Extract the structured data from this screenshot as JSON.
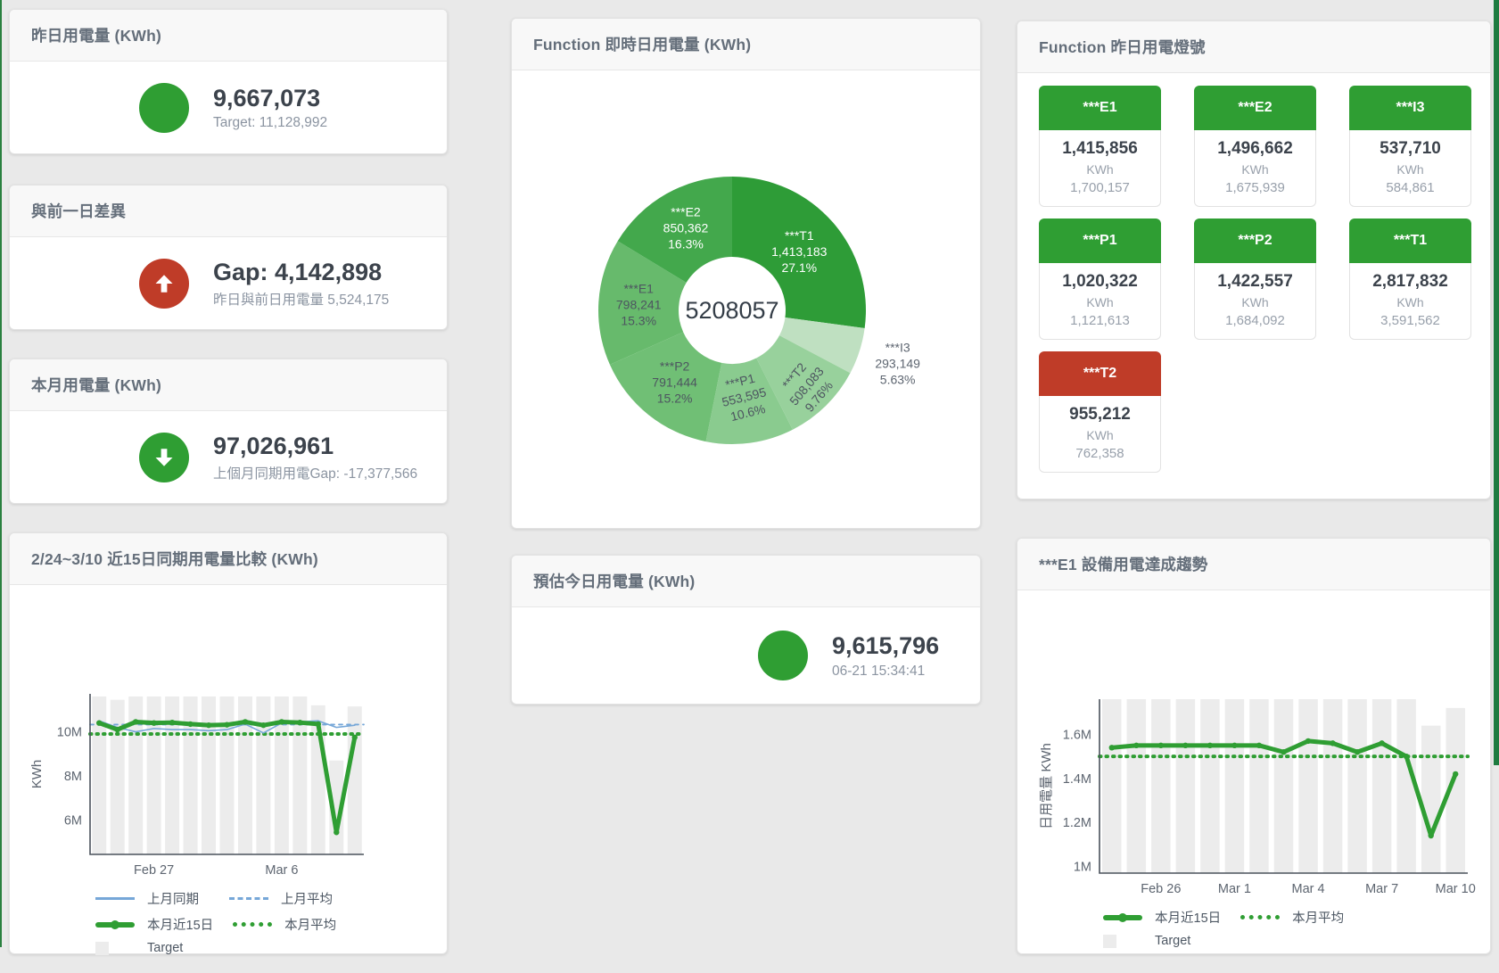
{
  "cards": {
    "yesterday": {
      "title": "昨日用電量 (KWh)",
      "value": "9,667,073",
      "sub": "Target: 11,128,992",
      "icon": "circle",
      "icon_color": "#2f9e33"
    },
    "gap_prev": {
      "title": "與前一日差異",
      "value": "Gap: 4,142,898",
      "sub": "昨日與前日用電量 5,524,175",
      "icon": "arrow-up",
      "icon_color": "#bf3c28"
    },
    "month": {
      "title": "本月用電量 (KWh)",
      "value": "97,026,961",
      "sub": "上個月同期用電Gap: -17,377,566",
      "icon": "arrow-down",
      "icon_color": "#2f9e33"
    },
    "estimate": {
      "title": "預估今日用電量 (KWh)",
      "value": "9,615,796",
      "sub": "06-21 15:34:41",
      "icon": "circle",
      "icon_color": "#2f9e33"
    },
    "donut": {
      "title": "Function 即時日用電量 (KWh)"
    },
    "lights": {
      "title": "Function 昨日用電燈號"
    },
    "compare": {
      "title": "2/24~3/10 近15日同期用電量比較 (KWh)"
    },
    "e1trend": {
      "title": "***E1 設備用電達成趨勢"
    }
  },
  "lights_tiles": [
    {
      "label": "***E1",
      "value": "1,415,856",
      "unit": "KWh",
      "target": "1,700,157",
      "color": "#2f9e33"
    },
    {
      "label": "***E2",
      "value": "1,496,662",
      "unit": "KWh",
      "target": "1,675,939",
      "color": "#2f9e33"
    },
    {
      "label": "***I3",
      "value": "537,710",
      "unit": "KWh",
      "target": "584,861",
      "color": "#2f9e33"
    },
    {
      "label": "***P1",
      "value": "1,020,322",
      "unit": "KWh",
      "target": "1,121,613",
      "color": "#2f9e33"
    },
    {
      "label": "***P2",
      "value": "1,422,557",
      "unit": "KWh",
      "target": "1,684,092",
      "color": "#2f9e33"
    },
    {
      "label": "***T1",
      "value": "2,817,832",
      "unit": "KWh",
      "target": "3,591,562",
      "color": "#2f9e33"
    },
    {
      "label": "***T2",
      "value": "955,212",
      "unit": "KWh",
      "target": "762,358",
      "color": "#bf3c28"
    }
  ],
  "chart_data": [
    {
      "id": "donut",
      "type": "pie",
      "title": "Function 即時日用電量 (KWh)",
      "center_label": "5208057",
      "slices": [
        {
          "name": "***T1",
          "value": 1413183,
          "value_str": "1,413,183",
          "pct": "27.1%",
          "color": "#2e9c37",
          "label_color": "#ffffff",
          "label_r": 100
        },
        {
          "name": "***I3",
          "value": 293149,
          "value_str": "293,149",
          "pct": "5.63%",
          "color": "#bfe0c1",
          "label_color": "#5d6570",
          "label_r": 195,
          "outside": true
        },
        {
          "name": "***T2",
          "value": 508083,
          "value_str": "508,083",
          "pct": "9.76%",
          "color": "#98d19c",
          "label_color": "#4d5560",
          "label_r": 119,
          "rotate": -50
        },
        {
          "name": "***P1",
          "value": 553595,
          "value_str": "553,595",
          "pct": "10.6%",
          "color": "#8acb8f",
          "label_color": "#4d5560",
          "label_r": 98,
          "rotate": -14
        },
        {
          "name": "***P2",
          "value": 791444,
          "value_str": "791,444",
          "pct": "15.2%",
          "color": "#70bf75",
          "label_color": "#4d5560",
          "label_r": 103
        },
        {
          "name": "***E1",
          "value": 798241,
          "value_str": "798,241",
          "pct": "15.3%",
          "color": "#67ba6c",
          "label_color": "#4d5560",
          "label_r": 105
        },
        {
          "name": "***E2",
          "value": 850362,
          "value_str": "850,362",
          "pct": "16.3%",
          "color": "#43a84c",
          "label_color": "#ffffff",
          "label_r": 106
        }
      ]
    },
    {
      "id": "compare",
      "type": "line",
      "title": "2/24~3/10 近15日同期用電量比較 (KWh)",
      "ylabel": "KWh",
      "ylim": [
        4.45,
        11.72
      ],
      "n": 15,
      "unit": "M",
      "yticks": [
        {
          "v": 6,
          "label": "6M"
        },
        {
          "v": 8,
          "label": "8M"
        },
        {
          "v": 10,
          "label": "10M"
        }
      ],
      "xticks": [
        {
          "i": 3,
          "label": "Feb 27"
        },
        {
          "i": 10,
          "label": "Mar 6"
        }
      ],
      "series": [
        {
          "name": "Target",
          "type": "bar",
          "color": "#ececec",
          "values": [
            11.6,
            11.45,
            11.6,
            11.6,
            11.6,
            11.6,
            11.6,
            11.6,
            11.6,
            11.6,
            11.6,
            11.6,
            11.2,
            8.7,
            11.15
          ]
        },
        {
          "name": "上月同期",
          "type": "line",
          "color": "#76a7d8",
          "width": 1.6,
          "values": [
            10.5,
            10.2,
            10.0,
            10.15,
            10.1,
            10.1,
            10.05,
            10.1,
            10.35,
            9.95,
            10.4,
            10.45,
            10.5,
            10.2,
            10.3
          ]
        },
        {
          "name": "上月平均",
          "type": "avg",
          "color": "#76a7d8",
          "width": 1.8,
          "dash": "4 5",
          "value": 10.33
        },
        {
          "name": "本月近15日",
          "type": "line",
          "color": "#2f9e33",
          "width": 5,
          "markers": true,
          "values": [
            10.4,
            10.1,
            10.45,
            10.4,
            10.42,
            10.35,
            10.3,
            10.32,
            10.45,
            10.3,
            10.45,
            10.42,
            10.35,
            5.45,
            9.75
          ]
        },
        {
          "name": "本月平均",
          "type": "avg",
          "color": "#2f9e33",
          "width": 4,
          "dash": "1.5 6",
          "value": 9.9
        }
      ],
      "legend": [
        [
          {
            "label": "上月同期",
            "swatch": "line",
            "color": "#76a7d8"
          },
          {
            "label": "上月平均",
            "swatch": "dash",
            "color": "#76a7d8"
          }
        ],
        [
          {
            "label": "本月近15日",
            "swatch": "thick",
            "color": "#2f9e33"
          },
          {
            "label": "本月平均",
            "swatch": "dots",
            "color": "#2f9e33"
          }
        ],
        [
          {
            "label": "Target",
            "swatch": "square",
            "color": "#ececec"
          }
        ]
      ]
    },
    {
      "id": "e1trend",
      "type": "line",
      "title": "***E1 設備用電達成趨勢",
      "ylabel": "日用電量 KWh",
      "ylim": [
        0.97,
        1.76
      ],
      "n": 15,
      "unit": "M",
      "yticks": [
        {
          "v": 1,
          "label": "1M"
        },
        {
          "v": 1.2,
          "label": "1.2M"
        },
        {
          "v": 1.4,
          "label": "1.4M"
        },
        {
          "v": 1.6,
          "label": "1.6M"
        }
      ],
      "xticks": [
        {
          "i": 2,
          "label": "Feb 26"
        },
        {
          "i": 5,
          "label": "Mar 1"
        },
        {
          "i": 8,
          "label": "Mar 4"
        },
        {
          "i": 11,
          "label": "Mar 7"
        },
        {
          "i": 14,
          "label": "Mar 10"
        }
      ],
      "series": [
        {
          "name": "Target",
          "type": "bar",
          "color": "#ececec",
          "values": [
            1.9,
            1.9,
            1.9,
            1.9,
            1.9,
            1.9,
            1.9,
            1.9,
            1.9,
            1.9,
            1.9,
            1.9,
            1.9,
            1.64,
            1.72
          ]
        },
        {
          "name": "本月近15日",
          "type": "line",
          "color": "#2f9e33",
          "width": 5,
          "markers": true,
          "values": [
            1.54,
            1.55,
            1.55,
            1.55,
            1.55,
            1.55,
            1.55,
            1.52,
            1.57,
            1.56,
            1.52,
            1.56,
            1.5,
            1.14,
            1.42
          ]
        },
        {
          "name": "本月平均",
          "type": "avg",
          "color": "#2f9e33",
          "width": 4,
          "dash": "1.5 6",
          "value": 1.5
        }
      ],
      "legend": [
        [
          {
            "label": "本月近15日",
            "swatch": "thick",
            "color": "#2f9e33"
          },
          {
            "label": "本月平均",
            "swatch": "dots",
            "color": "#2f9e33"
          }
        ],
        [
          {
            "label": "Target",
            "swatch": "square",
            "color": "#ececec"
          }
        ]
      ]
    }
  ]
}
